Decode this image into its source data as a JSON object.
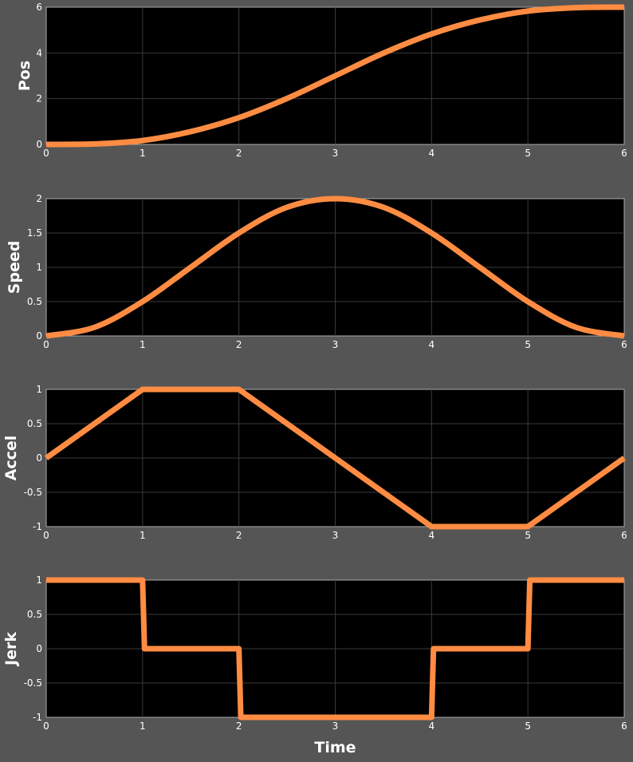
{
  "chart_data": [
    {
      "type": "line",
      "ylabel": "Pos",
      "xlim": [
        0,
        6
      ],
      "ylim": [
        0,
        6
      ],
      "xticks": [
        0,
        1,
        2,
        3,
        4,
        5,
        6
      ],
      "yticks": [
        0,
        2,
        4,
        6
      ],
      "grid": true,
      "series": [
        {
          "x": [
            0,
            0.5,
            1,
            1.5,
            2,
            2.5,
            3,
            3.5,
            4,
            4.5,
            5,
            5.5,
            6
          ],
          "y": [
            0,
            0.02,
            0.17,
            0.56,
            1.17,
            2.01,
            3.0,
            3.99,
            4.83,
            5.44,
            5.83,
            5.98,
            6.0
          ]
        }
      ]
    },
    {
      "type": "line",
      "ylabel": "Speed",
      "xlim": [
        0,
        6
      ],
      "ylim": [
        0,
        2
      ],
      "xticks": [
        0,
        1,
        2,
        3,
        4,
        5,
        6
      ],
      "yticks": [
        0,
        0.5,
        1,
        1.5,
        2
      ],
      "grid": true,
      "series": [
        {
          "x": [
            0,
            0.5,
            1,
            1.5,
            2,
            2.5,
            3,
            3.5,
            4,
            4.5,
            5,
            5.5,
            6
          ],
          "y": [
            0,
            0.125,
            0.5,
            1.0,
            1.5,
            1.875,
            2.0,
            1.875,
            1.5,
            1.0,
            0.5,
            0.125,
            0
          ]
        }
      ]
    },
    {
      "type": "line",
      "ylabel": "Accel",
      "xlim": [
        0,
        6
      ],
      "ylim": [
        -1,
        1
      ],
      "xticks": [
        0,
        1,
        2,
        3,
        4,
        5,
        6
      ],
      "yticks": [
        -1,
        -0.5,
        0,
        0.5,
        1
      ],
      "grid": true,
      "series": [
        {
          "x": [
            0,
            1,
            2,
            3,
            4,
            5,
            6
          ],
          "y": [
            0,
            1,
            1,
            0,
            -1,
            -1,
            0
          ]
        }
      ]
    },
    {
      "type": "line",
      "ylabel": "Jerk",
      "xlabel": "Time",
      "xlim": [
        0,
        6
      ],
      "ylim": [
        -1,
        1
      ],
      "xticks": [
        0,
        1,
        2,
        3,
        4,
        5,
        6
      ],
      "yticks": [
        -1,
        -0.5,
        0,
        0.5,
        1
      ],
      "grid": true,
      "series": [
        {
          "x": [
            0,
            1,
            1.02,
            2,
            2.02,
            4,
            4.02,
            5,
            5.02,
            6
          ],
          "y": [
            1,
            1,
            0,
            0,
            -1,
            -1,
            0,
            0,
            1,
            1
          ]
        }
      ]
    }
  ],
  "style": {
    "line_color": "#ff8c42",
    "plot_bg": "#000000",
    "figure_bg": "#555555"
  }
}
